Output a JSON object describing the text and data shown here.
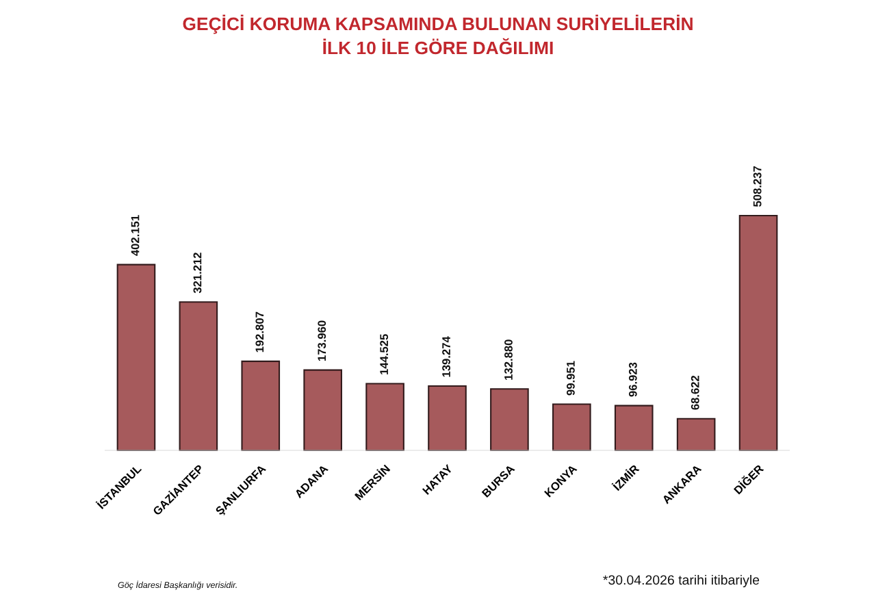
{
  "chart_data": {
    "type": "bar",
    "title": "GEÇİCİ KORUMA KAPSAMINDA BULUNAN SURİYELİLERİN\nİLK 10 İLE GÖRE DAĞILIMI",
    "categories": [
      "İSTANBUL",
      "GAZİANTEP",
      "ŞANLIURFA",
      "ADANA",
      "MERSİN",
      "HATAY",
      "BURSA",
      "KONYA",
      "İZMİR",
      "ANKARA",
      "DİĞER"
    ],
    "values": [
      402151,
      321212,
      192807,
      173960,
      144525,
      139274,
      132880,
      99951,
      96923,
      68622,
      508237
    ],
    "value_labels": [
      "402.151",
      "321.212",
      "192.807",
      "173.960",
      "144.525",
      "139.274",
      "132.880",
      "99.951",
      "96.923",
      "68.622",
      "508.237"
    ],
    "color": "#a65a5c",
    "tick_labels": "x",
    "annotations": [
      "Göç İdaresi Başkanlığı verisidir.",
      "*30.04.2026 tarihi itibariyle"
    ]
  }
}
